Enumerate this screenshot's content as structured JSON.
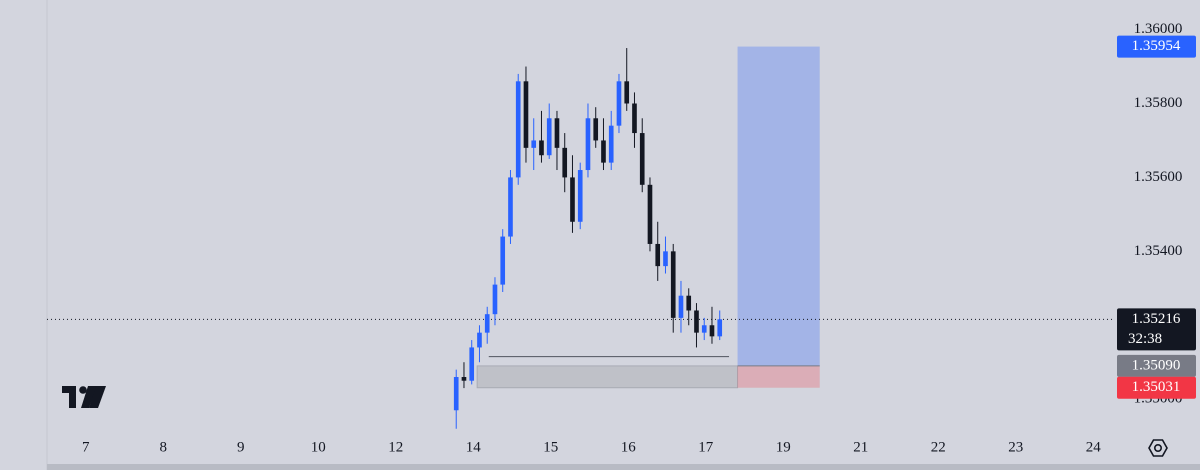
{
  "chart_data": {
    "type": "candlestick",
    "x": [
      4.78,
      4.88,
      4.98,
      5.08,
      5.18,
      5.28,
      5.38,
      5.48,
      5.58,
      5.68,
      5.78,
      5.88,
      5.98,
      6.08,
      6.18,
      6.28,
      6.38,
      6.48,
      6.58,
      6.68,
      6.78,
      6.88,
      6.98,
      7.08,
      7.18,
      7.28,
      7.38,
      7.48,
      7.58,
      7.68,
      7.78,
      7.88,
      7.98,
      8.08,
      8.18
    ],
    "open": [
      1.3497,
      1.3506,
      1.3505,
      1.3514,
      1.3518,
      1.3523,
      1.3531,
      1.3544,
      1.356,
      1.3586,
      1.3568,
      1.357,
      1.3566,
      1.3576,
      1.3568,
      1.356,
      1.3548,
      1.3562,
      1.3576,
      1.357,
      1.3564,
      1.3574,
      1.3586,
      1.358,
      1.3572,
      1.3558,
      1.3542,
      1.3536,
      1.354,
      1.3522,
      1.3528,
      1.3524,
      1.3518,
      1.352,
      1.3517
    ],
    "high": [
      1.3508,
      1.351,
      1.3516,
      1.352,
      1.3525,
      1.3533,
      1.3546,
      1.3562,
      1.3588,
      1.359,
      1.3576,
      1.3578,
      1.358,
      1.3578,
      1.3572,
      1.3566,
      1.3564,
      1.358,
      1.3579,
      1.3576,
      1.3578,
      1.3588,
      1.3595,
      1.3583,
      1.3576,
      1.356,
      1.3548,
      1.3544,
      1.3542,
      1.3532,
      1.353,
      1.3526,
      1.3522,
      1.3525,
      1.3524
    ],
    "low": [
      1.3492,
      1.3503,
      1.3504,
      1.351,
      1.3515,
      1.352,
      1.3529,
      1.3542,
      1.3558,
      1.3564,
      1.3562,
      1.3564,
      1.3565,
      1.3562,
      1.3556,
      1.3545,
      1.3546,
      1.356,
      1.3568,
      1.3562,
      1.3562,
      1.3572,
      1.3578,
      1.3568,
      1.3556,
      1.354,
      1.3532,
      1.3534,
      1.3518,
      1.3518,
      1.352,
      1.3514,
      1.3516,
      1.3515,
      1.3516
    ],
    "close": [
      1.3506,
      1.3505,
      1.3514,
      1.3518,
      1.3523,
      1.3531,
      1.3544,
      1.356,
      1.3586,
      1.3568,
      1.357,
      1.3566,
      1.3576,
      1.3568,
      1.356,
      1.3548,
      1.3562,
      1.3576,
      1.357,
      1.3564,
      1.3574,
      1.3586,
      1.358,
      1.3572,
      1.3558,
      1.3542,
      1.3536,
      1.354,
      1.3522,
      1.3528,
      1.3524,
      1.3518,
      1.352,
      1.3517,
      1.35216
    ],
    "up_color": "#2962ff",
    "down_color": "#131722",
    "xlim": [
      -0.5,
      13.28
    ],
    "ylim": [
      1.34895,
      1.3608
    ],
    "xticks": [
      {
        "value": 0,
        "label": "7"
      },
      {
        "value": 1,
        "label": "8"
      },
      {
        "value": 2,
        "label": "9"
      },
      {
        "value": 3,
        "label": "10"
      },
      {
        "value": 4,
        "label": "12"
      },
      {
        "value": 5,
        "label": "14"
      },
      {
        "value": 6,
        "label": "15"
      },
      {
        "value": 7,
        "label": "16"
      },
      {
        "value": 8,
        "label": "17"
      },
      {
        "value": 9,
        "label": "19"
      },
      {
        "value": 10,
        "label": "21"
      },
      {
        "value": 11,
        "label": "22"
      },
      {
        "value": 12,
        "label": "23"
      },
      {
        "value": 13,
        "label": "24"
      }
    ],
    "yticks": [
      {
        "value": 1.36,
        "label": "1.36000"
      },
      {
        "value": 1.358,
        "label": "1.35800"
      },
      {
        "value": 1.356,
        "label": "1.35600"
      },
      {
        "value": 1.354,
        "label": "1.35400"
      },
      {
        "value": 1.35,
        "label": "1.35000"
      }
    ],
    "position": {
      "x_start": 8.41,
      "x_end": 9.47,
      "entry": 1.3509,
      "target": 1.35954,
      "stop": 1.35031
    },
    "zone": {
      "x_start": 5.05,
      "x_end": 8.41,
      "top": 1.3509,
      "bottom": 1.35031
    },
    "level_line": {
      "x_start": 5.2,
      "x_end": 8.3,
      "value": 1.35115
    },
    "current_price": 1.35216,
    "price_labels": [
      {
        "value": 1.35954,
        "label": "1.35954",
        "color": "#2962ff"
      },
      {
        "value": 1.35216,
        "label": "1.35216",
        "color": "#131722",
        "countdown": "32:38"
      },
      {
        "value": 1.3509,
        "label": "1.35090",
        "color": "#787b86"
      },
      {
        "value": 1.35031,
        "label": "1.35031",
        "color": "#f23645"
      }
    ]
  }
}
